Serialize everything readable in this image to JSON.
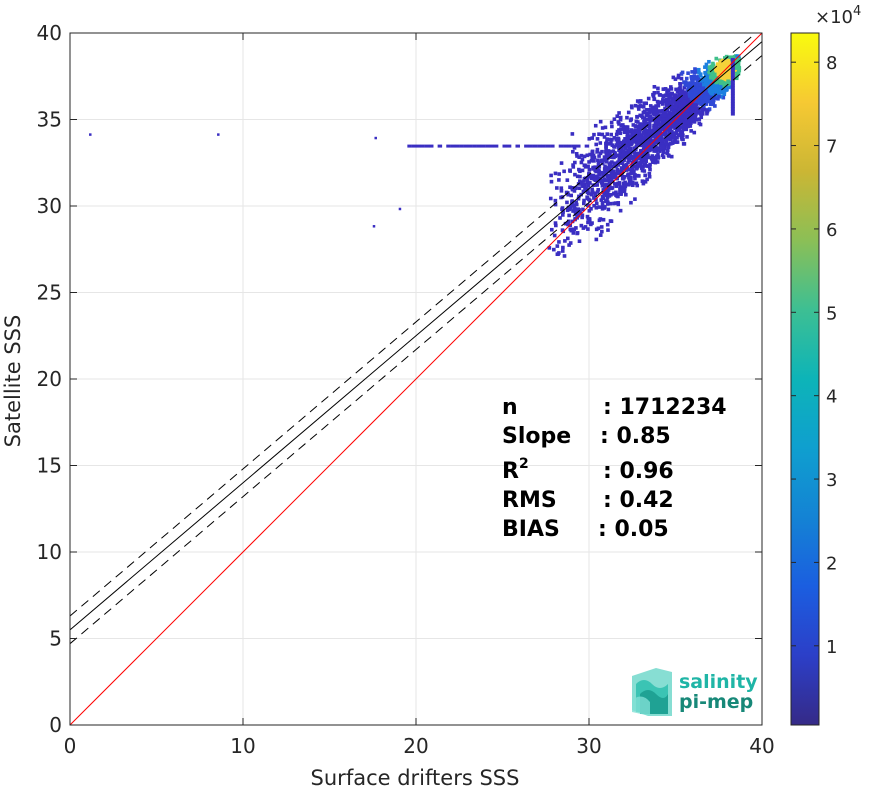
{
  "chart_data": {
    "type": "scatter",
    "subtype": "2d-density-histogram",
    "xlabel": "Surface drifters SSS",
    "ylabel": "Satellite SSS",
    "xlim": [
      0,
      40
    ],
    "ylim": [
      0,
      40
    ],
    "xticks": [
      "0",
      "10",
      "20",
      "30",
      "40"
    ],
    "yticks": [
      "0",
      "5",
      "10",
      "15",
      "20",
      "25",
      "30",
      "35",
      "40"
    ],
    "grid": true,
    "colorbar": {
      "multiplier": "×10",
      "exponent": "4",
      "ticks": [
        "1",
        "2",
        "3",
        "4",
        "5",
        "6",
        "7",
        "8"
      ],
      "range": [
        0.05,
        8.35
      ],
      "colormap": "parula"
    },
    "reference_lines": [
      {
        "kind": "identity",
        "color": "#ff0000",
        "intercept": 0,
        "slope": 1
      },
      {
        "kind": "regression",
        "color": "#000000",
        "style": "solid",
        "intercept": 5.5,
        "slope": 0.85
      },
      {
        "kind": "regression-bound",
        "color": "#000000",
        "style": "dashed",
        "intercept": 6.3,
        "slope": 0.85
      },
      {
        "kind": "regression-bound",
        "color": "#000000",
        "style": "dashed",
        "intercept": 4.7,
        "slope": 0.85
      }
    ],
    "density_cloud": {
      "x_range": [
        19.5,
        38.6
      ],
      "y_range": [
        27.0,
        38.6
      ],
      "peak": [
        37.8,
        37.8
      ],
      "outliers": [
        [
          1.1,
          34.2
        ],
        [
          8.5,
          34.2
        ],
        [
          17.6,
          34.0
        ],
        [
          17.5,
          28.9
        ],
        [
          19.0,
          29.9
        ]
      ]
    },
    "stats": [
      {
        "label": "n",
        "value": ": 1712234"
      },
      {
        "label": "Slope",
        "value": ": 0.85"
      },
      {
        "label": "R",
        "sup": "2",
        "value": ": 0.96"
      },
      {
        "label": "RMS",
        "value": ": 0.42"
      },
      {
        "label": "BIAS",
        "value": ": 0.05"
      }
    ]
  },
  "logo": {
    "line1": "salinity",
    "line2": "pi-mep",
    "color1": "#1fb5a6",
    "color2": "#178878"
  }
}
